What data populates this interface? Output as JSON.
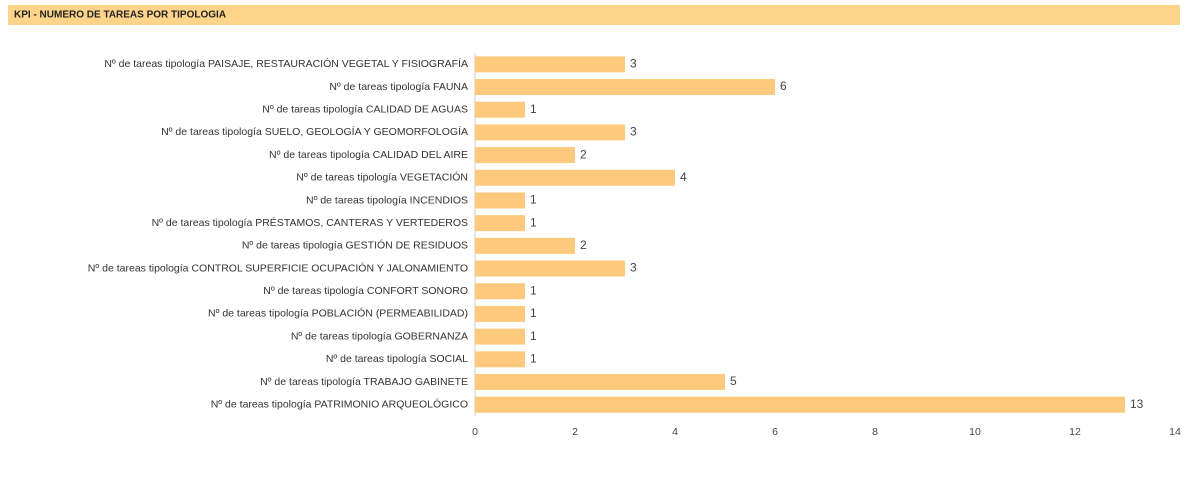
{
  "chart_data": {
    "type": "barh",
    "title": "KPI - NUMERO DE TAREAS POR TIPOLOGIA",
    "categories": [
      "Nº de tareas tipología PAISAJE, RESTAURACIÓN VEGETAL Y FISIOGRAFÍA",
      "Nº de tareas tipología FAUNA",
      "Nº de tareas tipología CALIDAD DE AGUAS",
      "Nº de tareas tipología SUELO, GEOLOGÍA Y GEOMORFOLOGÍA",
      "Nº de tareas tipología CALIDAD DEL AIRE",
      "Nº de tareas tipología VEGETACIÓN",
      "Nº de tareas tipología INCENDIOS",
      "Nº de tareas tipología PRÉSTAMOS, CANTERAS Y VERTEDEROS",
      "Nº de tareas tipología GESTIÓN DE RESIDUOS",
      "Nº de tareas tipología CONTROL SUPERFICIE OCUPACIÓN Y JALONAMIENTO",
      "Nº de tareas tipología CONFORT SONORO",
      "Nº de tareas tipología POBLACIÓN (PERMEABILIDAD)",
      "Nº de tareas tipología GOBERNANZA",
      "Nº de tareas tipología SOCIAL",
      "Nº de tareas tipología TRABAJO GABINETE",
      "Nº de tareas tipología PATRIMONIO ARQUEOLÓGICO"
    ],
    "values": [
      3,
      6,
      1,
      3,
      2,
      4,
      1,
      1,
      2,
      3,
      1,
      1,
      1,
      1,
      5,
      13
    ],
    "color": "#fdca7d",
    "header_color": "#fdd48a",
    "xlim": [
      0,
      14
    ],
    "xticks": [
      0,
      2,
      4,
      6,
      8,
      10,
      12,
      14
    ],
    "grid": false
  }
}
